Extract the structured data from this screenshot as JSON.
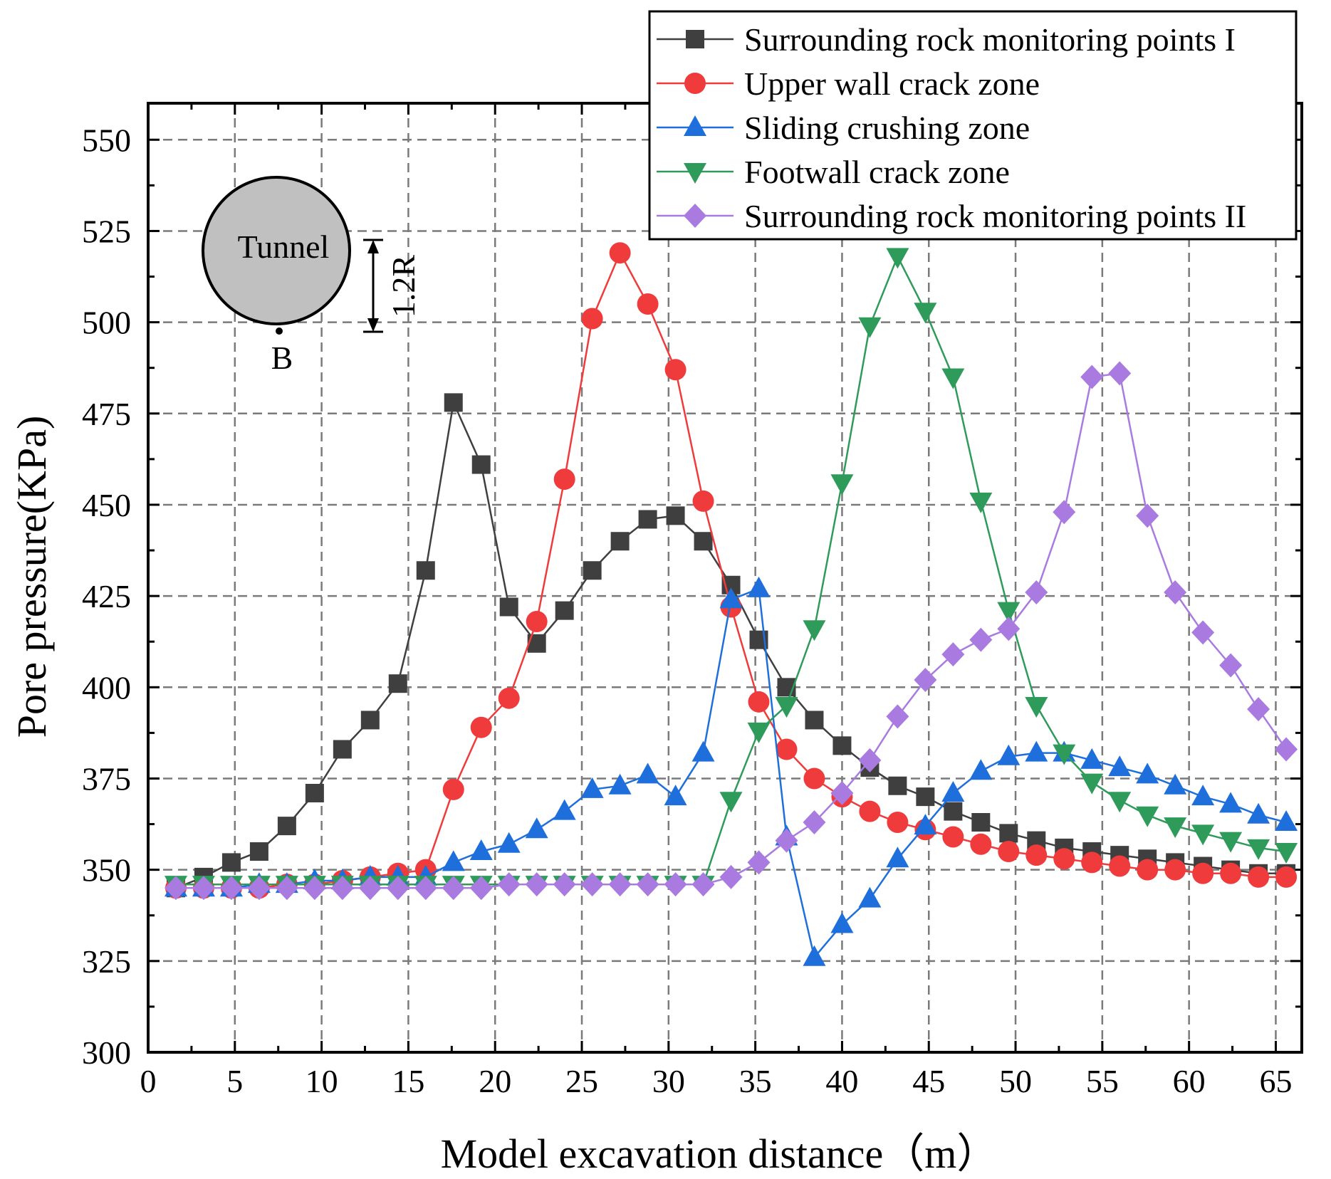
{
  "chart_data": {
    "type": "line",
    "title": "",
    "xlabel": "Model excavation distance（m）",
    "ylabel": "Pore pressure(KPa)",
    "xlim": [
      0,
      66.5
    ],
    "ylim": [
      300,
      560
    ],
    "xticks": [
      0,
      5,
      10,
      15,
      20,
      25,
      30,
      35,
      40,
      45,
      50,
      55,
      60,
      65
    ],
    "yticks": [
      300,
      325,
      350,
      375,
      400,
      425,
      450,
      475,
      500,
      525,
      550
    ],
    "grid": true,
    "legend_position": "top-right",
    "x": [
      1.6,
      3.2,
      4.8,
      6.4,
      8.0,
      9.6,
      11.2,
      12.8,
      14.4,
      16.0,
      17.6,
      19.2,
      20.8,
      22.4,
      24.0,
      25.6,
      27.2,
      28.8,
      30.4,
      32.0,
      33.6,
      35.2,
      36.8,
      38.4,
      40.0,
      41.6,
      43.2,
      44.8,
      46.4,
      48.0,
      49.6,
      51.2,
      52.8,
      54.4,
      56.0,
      57.6,
      59.2,
      60.8,
      62.4,
      64.0,
      65.6
    ],
    "series": [
      {
        "name": "Surrounding rock monitoring points I",
        "color": "#3f3f3f",
        "marker": "square",
        "values": [
          345,
          348,
          352,
          355,
          362,
          371,
          383,
          391,
          401,
          432,
          478,
          461,
          422,
          412,
          421,
          432,
          440,
          446,
          447,
          440,
          428,
          413,
          400,
          391,
          384,
          378,
          373,
          370,
          366,
          363,
          360,
          358,
          356,
          355,
          354,
          353,
          352,
          351,
          350,
          349,
          349
        ]
      },
      {
        "name": "Upper wall crack zone",
        "color": "#ef3b3b",
        "marker": "circle",
        "values": [
          345,
          345,
          345,
          345,
          346,
          346,
          347,
          348,
          349,
          350,
          372,
          389,
          397,
          418,
          457,
          501,
          519,
          505,
          487,
          451,
          422,
          396,
          383,
          375,
          370,
          366,
          363,
          361,
          359,
          357,
          355,
          354,
          353,
          352,
          351,
          350,
          350,
          349,
          349,
          348,
          348
        ]
      },
      {
        "name": "Sliding crushing zone",
        "color": "#1e6fdc",
        "marker": "triangle-up",
        "values": [
          345,
          345,
          345,
          346,
          346,
          347,
          347,
          348,
          348,
          348,
          352,
          355,
          357,
          361,
          366,
          372,
          373,
          376,
          370,
          382,
          424,
          427,
          359,
          326,
          335,
          342,
          353,
          362,
          371,
          377,
          381,
          382,
          382,
          380,
          378,
          376,
          373,
          370,
          368,
          365,
          363
        ]
      },
      {
        "name": "Footwall crack zone",
        "color": "#2e9b5a",
        "marker": "triangle-down",
        "values": [
          346,
          346,
          346,
          346,
          346,
          346,
          346,
          346,
          346,
          346,
          346,
          346,
          346,
          346,
          346,
          346,
          346,
          346,
          346,
          346,
          369,
          388,
          395,
          416,
          456,
          499,
          518,
          503,
          485,
          451,
          421,
          395,
          382,
          374,
          369,
          365,
          362,
          360,
          358,
          356,
          355
        ]
      },
      {
        "name": "Surrounding rock monitoring points II",
        "color": "#a97be0",
        "marker": "diamond",
        "values": [
          345,
          345,
          345,
          345,
          345,
          345,
          345,
          345,
          345,
          345,
          345,
          345,
          346,
          346,
          346,
          346,
          346,
          346,
          346,
          346,
          348,
          352,
          358,
          363,
          371,
          380,
          392,
          402,
          409,
          413,
          416,
          426,
          448,
          485,
          486,
          447,
          426,
          415,
          406,
          394,
          383
        ]
      }
    ],
    "annotations": {
      "tunnel_label": "Tunnel",
      "point_label": "B",
      "distance_label": "1.2R"
    }
  }
}
